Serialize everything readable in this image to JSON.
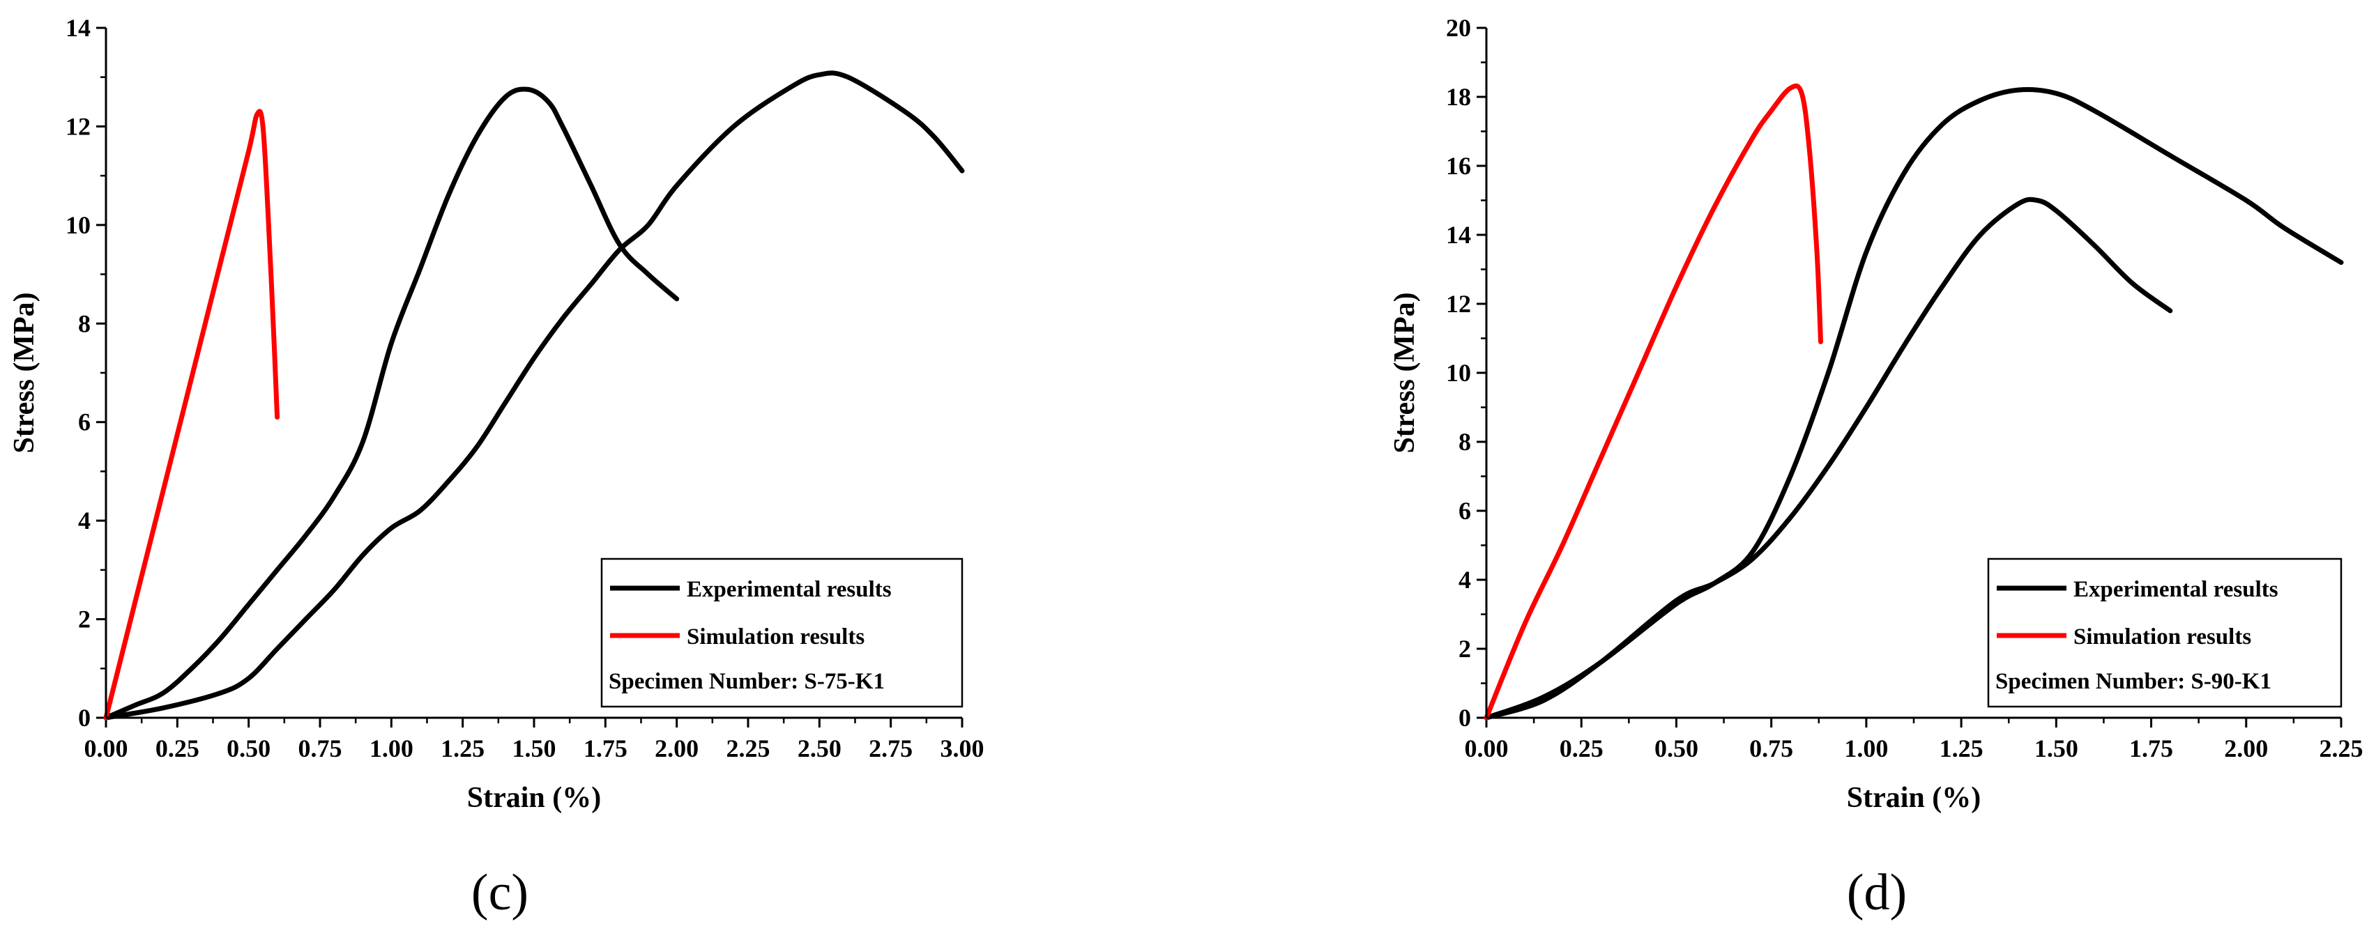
{
  "chart_data": [
    {
      "type": "line",
      "panel_label": "(c)",
      "xlabel": "Strain  (%)",
      "ylabel": "Stress  (MPa)",
      "xlim": [
        0,
        3.0
      ],
      "ylim": [
        0,
        14
      ],
      "xticks": [
        "0.00",
        "0.25",
        "0.50",
        "0.75",
        "1.00",
        "1.25",
        "1.50",
        "1.75",
        "2.00",
        "2.25",
        "2.50",
        "2.75",
        "3.00"
      ],
      "yticks": [
        "0",
        "2",
        "4",
        "6",
        "8",
        "10",
        "12",
        "14"
      ],
      "grid": false,
      "legend_position": "bottom-right",
      "legend": [
        "Experimental results",
        "Simulation results"
      ],
      "legend_note": "Specimen Number: S-75-K1",
      "colors": {
        "experimental": "#000000",
        "simulation": "#ff0000"
      },
      "series": [
        {
          "legend_index": 0,
          "x": [
            0,
            0.1,
            0.2,
            0.3,
            0.4,
            0.5,
            0.6,
            0.7,
            0.8,
            0.9,
            1.0,
            1.1,
            1.2,
            1.3,
            1.4,
            1.48,
            1.55,
            1.6,
            1.7,
            1.8,
            1.9,
            2.0
          ],
          "y": [
            0,
            0.25,
            0.5,
            1.0,
            1.6,
            2.3,
            3.0,
            3.7,
            4.5,
            5.6,
            7.6,
            9.1,
            10.6,
            11.8,
            12.6,
            12.75,
            12.5,
            12.0,
            10.8,
            9.6,
            9.0,
            8.5
          ]
        },
        {
          "legend_index": 0,
          "x": [
            0,
            0.2,
            0.4,
            0.5,
            0.6,
            0.7,
            0.8,
            0.9,
            1.0,
            1.1,
            1.2,
            1.3,
            1.4,
            1.5,
            1.6,
            1.7,
            1.8,
            1.9,
            2.0,
            2.2,
            2.4,
            2.5,
            2.6,
            2.8,
            2.9,
            3.0
          ],
          "y": [
            0,
            0.2,
            0.5,
            0.8,
            1.4,
            2.0,
            2.6,
            3.3,
            3.85,
            4.2,
            4.8,
            5.5,
            6.4,
            7.3,
            8.1,
            8.8,
            9.5,
            10.0,
            10.8,
            12.0,
            12.8,
            13.05,
            13.0,
            12.3,
            11.8,
            11.1
          ]
        },
        {
          "legend_index": 1,
          "x": [
            0,
            0.1,
            0.2,
            0.3,
            0.4,
            0.5,
            0.53,
            0.55,
            0.57,
            0.59,
            0.6
          ],
          "y": [
            0,
            2.3,
            4.6,
            6.9,
            9.2,
            11.5,
            12.25,
            12.0,
            10.0,
            7.5,
            6.1
          ]
        }
      ]
    },
    {
      "type": "line",
      "panel_label": "(d)",
      "xlabel": "Strain  (%)",
      "ylabel": "Stress  (MPa)",
      "xlim": [
        0,
        2.25
      ],
      "ylim": [
        0,
        20
      ],
      "xticks": [
        "0.00",
        "0.25",
        "0.50",
        "0.75",
        "1.00",
        "1.25",
        "1.50",
        "1.75",
        "2.00",
        "2.25"
      ],
      "yticks": [
        "0",
        "2",
        "4",
        "6",
        "8",
        "10",
        "12",
        "14",
        "16",
        "18",
        "20"
      ],
      "grid": false,
      "legend_position": "bottom-right",
      "legend": [
        "Experimental results",
        "Simulation results"
      ],
      "legend_note": "Specimen Number: S-90-K1",
      "colors": {
        "experimental": "#000000",
        "simulation": "#ff0000"
      },
      "series": [
        {
          "legend_index": 0,
          "x": [
            0,
            0.15,
            0.3,
            0.5,
            0.6,
            0.7,
            0.8,
            0.9,
            1.0,
            1.1,
            1.2,
            1.3,
            1.4,
            1.5,
            1.6,
            1.8,
            2.0,
            2.1,
            2.25
          ],
          "y": [
            0,
            0.6,
            1.6,
            3.3,
            3.9,
            4.8,
            7.0,
            10.0,
            13.5,
            15.8,
            17.2,
            17.9,
            18.2,
            18.1,
            17.6,
            16.3,
            15.0,
            14.2,
            13.2
          ]
        },
        {
          "legend_index": 0,
          "x": [
            0,
            0.15,
            0.3,
            0.5,
            0.6,
            0.7,
            0.8,
            0.9,
            1.0,
            1.1,
            1.2,
            1.3,
            1.4,
            1.45,
            1.5,
            1.6,
            1.7,
            1.8
          ],
          "y": [
            0,
            0.5,
            1.6,
            3.4,
            3.9,
            4.6,
            5.8,
            7.3,
            9.0,
            10.8,
            12.5,
            14.0,
            14.9,
            15.0,
            14.7,
            13.7,
            12.6,
            11.8
          ]
        },
        {
          "legend_index": 1,
          "x": [
            0,
            0.1,
            0.2,
            0.3,
            0.4,
            0.5,
            0.6,
            0.7,
            0.75,
            0.8,
            0.83,
            0.85,
            0.87,
            0.88
          ],
          "y": [
            0,
            2.7,
            5.0,
            7.5,
            10.0,
            12.5,
            14.8,
            16.8,
            17.6,
            18.25,
            18.1,
            16.5,
            13.5,
            10.9
          ]
        }
      ]
    }
  ]
}
